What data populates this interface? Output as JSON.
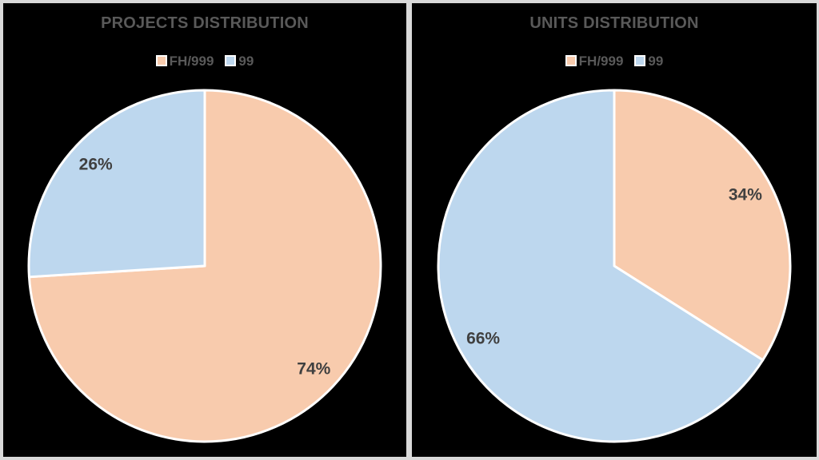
{
  "colors": {
    "background": "#000000",
    "frame_border": "#D9D9D9",
    "title_text": "#595959",
    "label_text": "#404040",
    "legend_text": "#595959",
    "slice_stroke": "#FFFFFF"
  },
  "chart_data": [
    {
      "type": "pie",
      "title": "PROJECTS DISTRIBUTION",
      "categories": [
        "FH/999",
        "99"
      ],
      "values": [
        74,
        26
      ],
      "labels": [
        "74%",
        "26%"
      ],
      "colors": [
        "#F8CBAD",
        "#BDD7EE"
      ],
      "legend_position": "top",
      "start_angle_deg": 0,
      "direction": "clockwise",
      "label_position": "inside-end"
    },
    {
      "type": "pie",
      "title": "UNITS DISTRIBUTION",
      "categories": [
        "FH/999",
        "99"
      ],
      "values": [
        34,
        66
      ],
      "labels": [
        "34%",
        "66%"
      ],
      "colors": [
        "#F8CBAD",
        "#BDD7EE"
      ],
      "legend_position": "top",
      "start_angle_deg": 0,
      "direction": "clockwise",
      "label_position": "inside-end"
    }
  ]
}
